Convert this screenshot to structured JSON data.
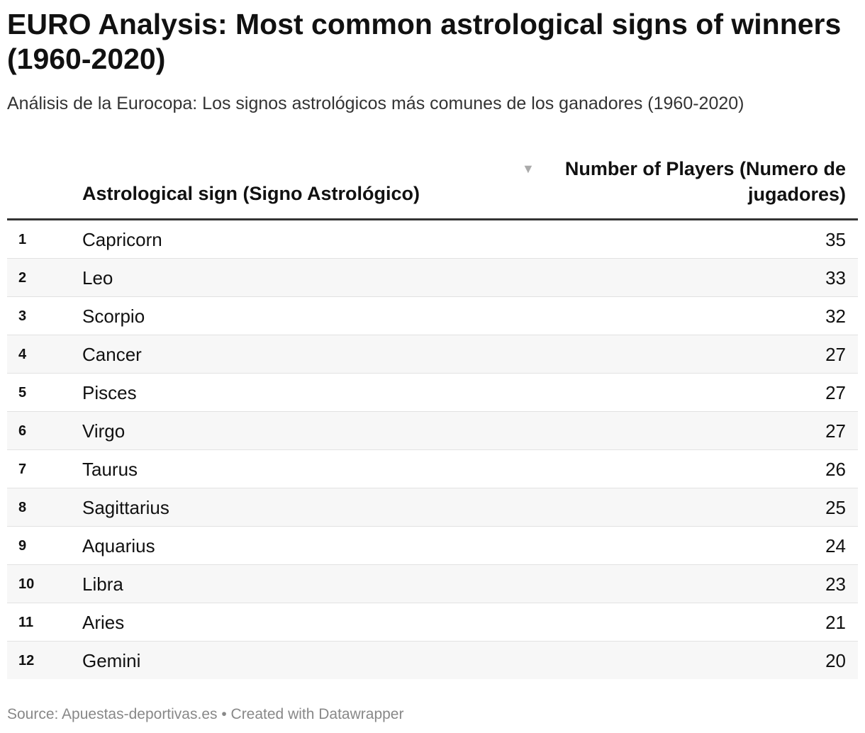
{
  "header": {
    "title": "EURO Analysis: Most common astrological signs of winners (1960-2020)",
    "subtitle": "Análisis de la Eurocopa: Los signos astrológicos más comunes de los ganadores (1960-2020)"
  },
  "table": {
    "columns": [
      "Astrological sign (Signo Astrológico)",
      "Number of Players (Numero de jugadores)"
    ],
    "rows": [
      [
        1,
        "Capricorn",
        35
      ],
      [
        2,
        "Leo",
        33
      ],
      [
        3,
        "Scorpio",
        32
      ],
      [
        4,
        "Cancer",
        27
      ],
      [
        5,
        "Pisces",
        27
      ],
      [
        6,
        "Virgo",
        27
      ],
      [
        7,
        "Taurus",
        26
      ],
      [
        8,
        "Sagittarius",
        25
      ],
      [
        9,
        "Aquarius",
        24
      ],
      [
        10,
        "Libra",
        23
      ],
      [
        11,
        "Aries",
        21
      ],
      [
        12,
        "Gemini",
        20
      ]
    ]
  },
  "footer": {
    "source": "Source: Apuestas-deportivas.es • Created with Datawrapper"
  }
}
